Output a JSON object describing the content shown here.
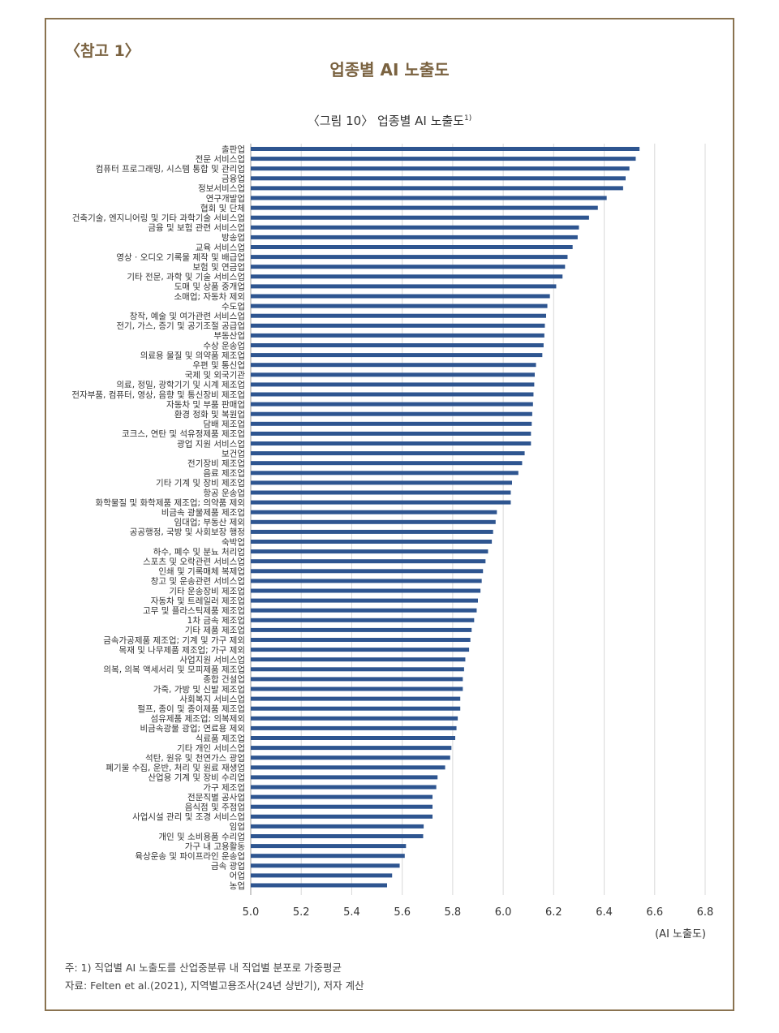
{
  "ref_label": "〈참고 1〉",
  "main_title": "업종별 AI 노출도",
  "figure_title": "〈그림 10〉 업종별 AI 노출도",
  "figure_title_sup": "1)",
  "notes": [
    "주: 1) 직업별 AI 노출도를 산업중분류 내 직업별 분포로 가중평균",
    "자료: Felten et al.(2021), 지역별고용조사(24년 상반기), 저자 계산"
  ],
  "colors": {
    "bar": "#2e5590",
    "frame": "#8a7350",
    "title": "#7a6240",
    "grid": "#d9d9d9"
  },
  "chart_data": {
    "type": "bar",
    "orientation": "horizontal",
    "xlabel": "(AI 노출도)",
    "xlim": [
      5.0,
      6.8
    ],
    "xticks": [
      "5.0",
      "5.2",
      "5.4",
      "5.6",
      "5.8",
      "6.0",
      "6.2",
      "6.4",
      "6.6",
      "6.8"
    ],
    "grid": true,
    "categories": [
      "출판업",
      "전문 서비스업",
      "컴퓨터 프로그래밍, 시스템 통합 및 관리업",
      "금융업",
      "정보서비스업",
      "연구개발업",
      "협회 및 단체",
      "건축기술, 엔지니어링 및 기타 과학기술 서비스업",
      "금융 및 보험 관련 서비스업",
      "방송업",
      "교육 서비스업",
      "영상 · 오디오 기록물 제작 및 배급업",
      "보험 및 연금업",
      "기타 전문, 과학 및 기술 서비스업",
      "도매 및 상품 중개업",
      "소매업; 자동차 제외",
      "수도업",
      "창작, 예술 및 여가관련 서비스업",
      "전기, 가스, 증기 및 공기조절 공급업",
      "부동산업",
      "수상 운송업",
      "의료용 물질 및 의약품 제조업",
      "우편 및 통신업",
      "국제 및 외국기관",
      "의료, 정밀, 광학기기 및 시계 제조업",
      "전자부품, 컴퓨터, 영상, 음향 및 통신장비 제조업",
      "자동차 및 부품 판매업",
      "환경 정화 및 복원업",
      "담배 제조업",
      "코크스, 연탄 및 석유정제품 제조업",
      "광업 지원 서비스업",
      "보건업",
      "전기장비 제조업",
      "음료 제조업",
      "기타 기계 및 장비 제조업",
      "항공 운송업",
      "화학물질 및 화학제품 제조업; 의약품 제외",
      "비금속 광물제품 제조업",
      "임대업; 부동산 제외",
      "공공행정, 국방 및 사회보장 행정",
      "숙박업",
      "하수, 폐수 및 분뇨 처리업",
      "스포츠 및 오락관련 서비스업",
      "인쇄 및 기록매체 복제업",
      "창고 및 운송관련 서비스업",
      "기타 운송장비 제조업",
      "자동차 및 트레일러 제조업",
      "고무 및 플라스틱제품 제조업",
      "1차 금속 제조업",
      "기타 제품 제조업",
      "금속가공제품 제조업; 기계 및 가구 제외",
      "목재 및 나무제품 제조업; 가구 제외",
      "사업지원 서비스업",
      "의복, 의복 액세서리 및 모피제품 제조업",
      "종합 건설업",
      "가죽, 가방 및 신발 제조업",
      "사회복지 서비스업",
      "펄프, 종이 및 종이제품 제조업",
      "섬유제품 제조업; 의복제외",
      "비금속광물 광업; 연료용 제외",
      "식료품 제조업",
      "기타 개인 서비스업",
      "석탄, 원유 및 천연가스 광업",
      "폐기물 수집, 운반, 처리 및 원료 재생업",
      "산업용 기계 및 장비 수리업",
      "가구 제조업",
      "전문직별 공사업",
      "음식점 및 주점업",
      "사업시설 관리 및 조경 서비스업",
      "임업",
      "개인 및 소비용품 수리업",
      "가구 내 고용활동",
      "육상운송 및 파이프라인 운송업",
      "금속 광업",
      "어업",
      "농업"
    ],
    "values": [
      6.54,
      6.525,
      6.5,
      6.485,
      6.475,
      6.41,
      6.375,
      6.34,
      6.3,
      6.295,
      6.275,
      6.255,
      6.245,
      6.235,
      6.21,
      6.185,
      6.175,
      6.17,
      6.165,
      6.163,
      6.16,
      6.155,
      6.13,
      6.125,
      6.123,
      6.12,
      6.118,
      6.115,
      6.113,
      6.11,
      6.11,
      6.085,
      6.075,
      6.06,
      6.035,
      6.03,
      6.03,
      5.975,
      5.97,
      5.96,
      5.955,
      5.94,
      5.93,
      5.92,
      5.915,
      5.91,
      5.9,
      5.895,
      5.885,
      5.875,
      5.87,
      5.865,
      5.85,
      5.845,
      5.84,
      5.84,
      5.83,
      5.83,
      5.82,
      5.815,
      5.81,
      5.795,
      5.79,
      5.77,
      5.74,
      5.735,
      5.72,
      5.72,
      5.72,
      5.685,
      5.683,
      5.615,
      5.61,
      5.59,
      5.56,
      5.54
    ]
  }
}
